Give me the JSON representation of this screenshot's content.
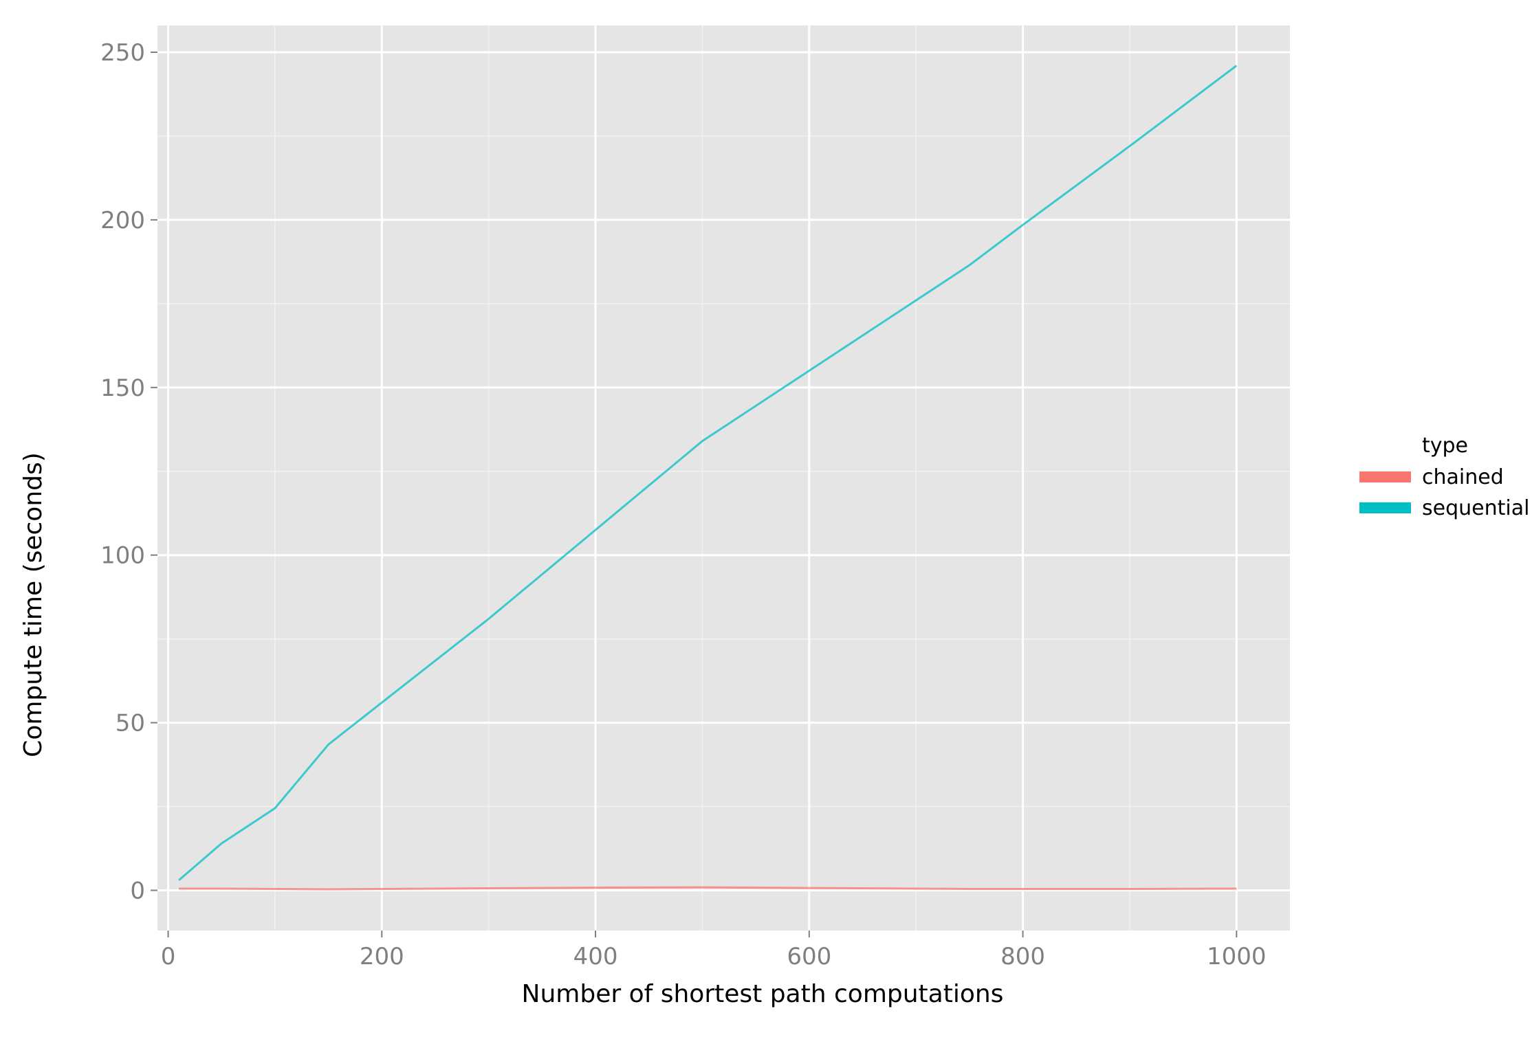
{
  "chart_data": {
    "type": "line",
    "xlabel": "Number of shortest path computations",
    "ylabel": "Compute time (seconds)",
    "xlim": [
      -10,
      1050
    ],
    "ylim": [
      -12,
      258
    ],
    "x_ticks": [
      0,
      200,
      400,
      600,
      800,
      1000
    ],
    "x_tick_labels": [
      "0",
      "200",
      "400",
      "600",
      "800",
      "1000"
    ],
    "y_ticks": [
      0,
      50,
      100,
      150,
      200,
      250
    ],
    "y_tick_labels": [
      "0",
      "50",
      "100",
      "150",
      "200",
      "250"
    ],
    "grid": true,
    "legend": {
      "title": "type",
      "placement": "right"
    },
    "colors": {
      "panel_background": "#e5e5e5",
      "grid_major": "#ffffff",
      "grid_minor": "#f2f2f2",
      "tick_mark": "#7f7f7f"
    },
    "series": [
      {
        "name": "chained",
        "color": "#f8766d",
        "x": [
          10,
          50,
          100,
          150,
          200,
          250,
          300,
          400,
          500,
          600,
          700,
          750,
          800,
          900,
          1000
        ],
        "y": [
          0.5,
          0.5,
          0.4,
          0.3,
          0.4,
          0.5,
          0.6,
          0.8,
          0.9,
          0.7,
          0.5,
          0.4,
          0.4,
          0.4,
          0.5
        ]
      },
      {
        "name": "sequential",
        "color": "#00bfc4",
        "x": [
          10,
          50,
          100,
          150,
          200,
          250,
          300,
          400,
          500,
          600,
          700,
          750,
          800,
          900,
          1000
        ],
        "y": [
          3,
          14,
          24.5,
          43.5,
          56,
          68.5,
          81,
          107.5,
          134,
          155,
          176,
          186.5,
          198.5,
          222,
          246
        ]
      }
    ]
  }
}
